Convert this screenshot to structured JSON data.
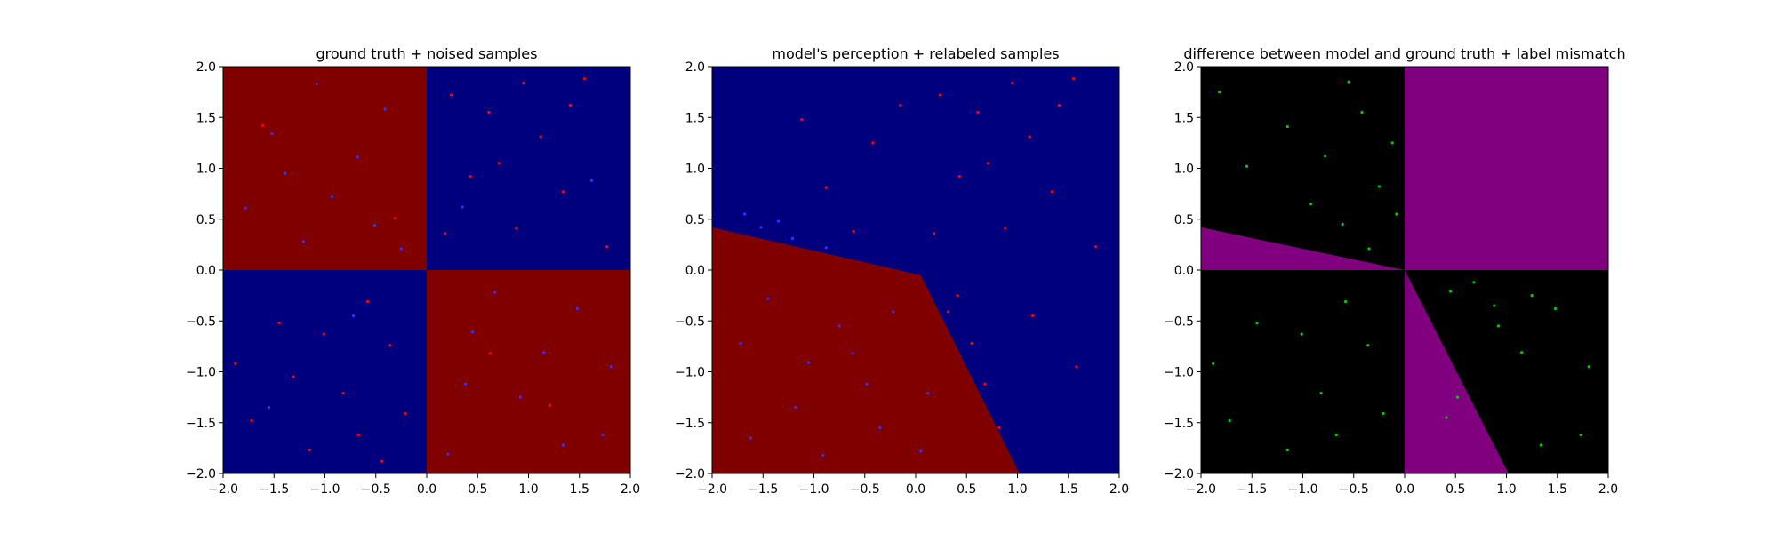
{
  "chart_data": [
    {
      "type": "scatter",
      "title": "ground truth + noised samples",
      "xlabel": "",
      "ylabel": "",
      "xlim": [
        -2.0,
        2.0
      ],
      "ylim": [
        -2.0,
        2.0
      ],
      "x_ticks": [
        "−2.0",
        "−1.5",
        "−1.0",
        "−0.5",
        "0.0",
        "0.5",
        "1.0",
        "1.5",
        "2.0"
      ],
      "y_ticks": [
        "−2.0",
        "−1.5",
        "−1.0",
        "−0.5",
        "0.0",
        "0.5",
        "1.0",
        "1.5",
        "2.0"
      ],
      "background_regions": [
        {
          "quadrant": "top-left",
          "color": "#800000"
        },
        {
          "quadrant": "top-right",
          "color": "#00007f"
        },
        {
          "quadrant": "bottom-left",
          "color": "#00007f"
        },
        {
          "quadrant": "bottom-right",
          "color": "#800000"
        }
      ],
      "series": [
        {
          "color": "#ff0000",
          "points": [
            [
              0.24,
              1.72
            ],
            [
              0.61,
              1.55
            ],
            [
              1.12,
              1.31
            ],
            [
              1.55,
              1.88
            ],
            [
              0.43,
              0.92
            ],
            [
              0.88,
              0.41
            ],
            [
              1.34,
              0.77
            ],
            [
              1.77,
              0.23
            ],
            [
              0.18,
              0.36
            ],
            [
              0.71,
              1.05
            ],
            [
              1.41,
              1.62
            ],
            [
              0.95,
              1.84
            ],
            [
              -1.45,
              -0.52
            ],
            [
              -0.82,
              -1.21
            ],
            [
              -1.72,
              -1.48
            ],
            [
              -0.36,
              -0.74
            ],
            [
              -1.15,
              -1.77
            ],
            [
              -0.58,
              -0.31
            ],
            [
              -1.88,
              -0.92
            ],
            [
              -0.21,
              -1.41
            ],
            [
              -1.01,
              -0.63
            ],
            [
              -0.67,
              -1.62
            ],
            [
              -1.31,
              -1.05
            ],
            [
              -0.44,
              -1.88
            ],
            [
              -1.61,
              1.42
            ],
            [
              -0.31,
              0.51
            ],
            [
              0.62,
              -0.82
            ],
            [
              1.21,
              -1.33
            ]
          ]
        },
        {
          "color": "#3333ff",
          "points": [
            [
              -1.52,
              1.34
            ],
            [
              -0.93,
              0.72
            ],
            [
              -0.41,
              1.58
            ],
            [
              -1.21,
              0.28
            ],
            [
              -0.68,
              1.11
            ],
            [
              -1.78,
              0.61
            ],
            [
              -0.25,
              0.21
            ],
            [
              -1.08,
              1.83
            ],
            [
              0.45,
              -0.61
            ],
            [
              0.92,
              -1.25
            ],
            [
              1.48,
              -0.38
            ],
            [
              1.73,
              -1.62
            ],
            [
              0.21,
              -1.81
            ],
            [
              1.15,
              -0.81
            ],
            [
              0.67,
              -0.22
            ],
            [
              1.34,
              -1.72
            ],
            [
              0.38,
              -1.12
            ],
            [
              1.81,
              -0.95
            ],
            [
              -0.51,
              0.44
            ],
            [
              -1.39,
              0.95
            ],
            [
              0.35,
              0.62
            ],
            [
              1.62,
              0.88
            ],
            [
              -0.72,
              -0.45
            ],
            [
              -1.55,
              -1.35
            ]
          ]
        }
      ]
    },
    {
      "type": "scatter",
      "title": "model's perception + relabeled samples",
      "xlabel": "",
      "ylabel": "",
      "xlim": [
        -2.0,
        2.0
      ],
      "ylim": [
        -2.0,
        2.0
      ],
      "x_ticks": [
        "−2.0",
        "−1.5",
        "−1.0",
        "−0.5",
        "0.0",
        "0.5",
        "1.0",
        "1.5",
        "2.0"
      ],
      "y_ticks": [
        "−2.0",
        "−1.5",
        "−1.0",
        "−0.5",
        "0.0",
        "0.5",
        "1.0",
        "1.5",
        "2.0"
      ],
      "decision_boundary": [
        [
          -2.0,
          0.42
        ],
        [
          0.05,
          -0.05
        ],
        [
          1.02,
          -2.0
        ]
      ],
      "region_colors": {
        "above": "#00007f",
        "below": "#800000"
      },
      "series": [
        {
          "color": "#ff0000",
          "points": [
            [
              0.24,
              1.72
            ],
            [
              0.61,
              1.55
            ],
            [
              1.12,
              1.31
            ],
            [
              1.55,
              1.88
            ],
            [
              0.43,
              0.92
            ],
            [
              0.88,
              0.41
            ],
            [
              1.34,
              0.77
            ],
            [
              1.77,
              0.23
            ],
            [
              0.18,
              0.36
            ],
            [
              0.71,
              1.05
            ],
            [
              1.41,
              1.62
            ],
            [
              0.95,
              1.84
            ],
            [
              0.32,
              -0.41
            ],
            [
              0.55,
              -0.72
            ],
            [
              0.68,
              -1.12
            ],
            [
              0.82,
              -1.55
            ],
            [
              0.41,
              -0.25
            ],
            [
              -0.42,
              1.25
            ],
            [
              -0.88,
              0.81
            ],
            [
              -0.15,
              1.62
            ],
            [
              -1.12,
              1.48
            ],
            [
              -0.61,
              0.38
            ],
            [
              1.15,
              -0.45
            ],
            [
              1.58,
              -0.95
            ]
          ]
        },
        {
          "color": "#3333ff",
          "points": [
            [
              -1.52,
              0.42
            ],
            [
              -1.21,
              0.31
            ],
            [
              -0.88,
              0.22
            ],
            [
              -1.68,
              0.55
            ],
            [
              -1.35,
              0.48
            ],
            [
              -1.72,
              -0.72
            ],
            [
              -1.18,
              -1.35
            ],
            [
              -0.62,
              -0.82
            ],
            [
              -0.35,
              -1.55
            ],
            [
              -0.91,
              -1.82
            ],
            [
              -1.45,
              -0.28
            ],
            [
              -0.22,
              -0.41
            ],
            [
              0.12,
              -1.21
            ],
            [
              -0.75,
              -0.55
            ],
            [
              -1.62,
              -1.65
            ],
            [
              0.05,
              -1.78
            ],
            [
              -0.48,
              -1.12
            ],
            [
              -1.05,
              -0.91
            ]
          ]
        }
      ]
    },
    {
      "type": "scatter",
      "title": "difference between model and ground truth + label mismatch",
      "xlabel": "",
      "ylabel": "",
      "xlim": [
        -2.0,
        2.0
      ],
      "ylim": [
        -2.0,
        2.0
      ],
      "x_ticks": [
        "−2.0",
        "−1.5",
        "−1.0",
        "−0.5",
        "0.0",
        "0.5",
        "1.0",
        "1.5",
        "2.0"
      ],
      "y_ticks": [
        "−2.0",
        "−1.5",
        "−1.0",
        "−0.5",
        "0.0",
        "0.5",
        "1.0",
        "1.5",
        "2.0"
      ],
      "background_color": "#000000",
      "mismatch_color": "#800080",
      "series": [
        {
          "color": "#00cc00",
          "points": [
            [
              -0.42,
              1.55
            ],
            [
              -0.78,
              1.12
            ],
            [
              -0.25,
              0.82
            ],
            [
              -1.15,
              1.41
            ],
            [
              -0.61,
              0.45
            ],
            [
              -0.12,
              1.25
            ],
            [
              -0.35,
              0.21
            ],
            [
              -0.92,
              0.65
            ],
            [
              -1.55,
              1.02
            ],
            [
              -0.08,
              0.55
            ],
            [
              -0.55,
              1.85
            ],
            [
              -1.82,
              1.75
            ],
            [
              -1.45,
              -0.52
            ],
            [
              -0.82,
              -1.21
            ],
            [
              -1.72,
              -1.48
            ],
            [
              -0.36,
              -0.74
            ],
            [
              -1.15,
              -1.77
            ],
            [
              -0.58,
              -0.31
            ],
            [
              -1.88,
              -0.92
            ],
            [
              -0.21,
              -1.41
            ],
            [
              -1.01,
              -0.63
            ],
            [
              -0.67,
              -1.62
            ],
            [
              0.45,
              -0.21
            ],
            [
              0.92,
              -0.55
            ],
            [
              1.48,
              -0.38
            ],
            [
              1.73,
              -1.62
            ],
            [
              1.15,
              -0.81
            ],
            [
              1.34,
              -1.72
            ],
            [
              1.81,
              -0.95
            ],
            [
              0.68,
              -0.12
            ],
            [
              1.25,
              -0.25
            ],
            [
              0.41,
              -1.45
            ],
            [
              0.52,
              -1.25
            ],
            [
              0.88,
              -0.35
            ]
          ]
        }
      ]
    }
  ]
}
